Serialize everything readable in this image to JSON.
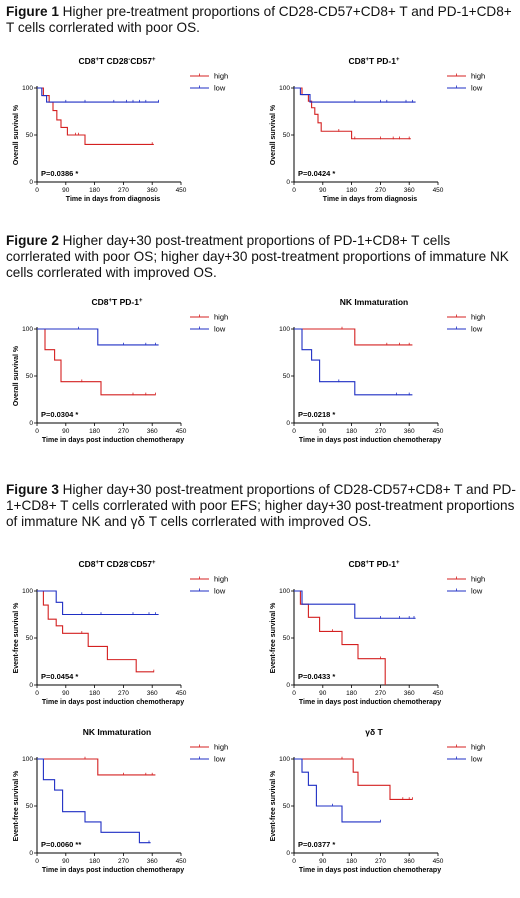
{
  "figures": [
    {
      "label": "Figure 1",
      "caption": "Higher pre-treatment proportions of CD28-CD57+CD8+ T and PD-1+CD8+ T cells corrlerated with poor OS."
    },
    {
      "label": "Figure 2",
      "caption": "Higher day+30 post-treatment proportions of PD-1+CD8+ T cells corrlerated with poor OS; higher day+30 post-treatment proportions of immature NK cells corrlerated with improved OS."
    },
    {
      "label": "Figure 3",
      "caption": "Higher day+30 post-treatment proportions of CD28-CD57+CD8+ T and PD-1+CD8+ T cells corrlerated with poor EFS; higher day+30 post-treatment proportions of immature NK and γδ T cells corrlerated with improved OS."
    }
  ],
  "colors": {
    "high": "#d42020",
    "low": "#1f2fc4",
    "axis": "#000000"
  },
  "chart_data": [
    {
      "type": "line",
      "figure": "Figure 1",
      "title": "CD8+T CD28-CD57+",
      "title_main": "CD8",
      "title_sup1": "+",
      "title_mid": "T CD28",
      "title_sub": "-",
      "title_mid2": "CD57",
      "title_sup2": "+",
      "ylabel": "Overall survival %",
      "xlabel": "Time in days from diagnosis",
      "xlim": [
        0,
        450
      ],
      "ylim": [
        0,
        100
      ],
      "xticks": [
        "0",
        "90",
        "180",
        "270",
        "360",
        "450"
      ],
      "yticks": [
        "0",
        "50",
        "100"
      ],
      "pvalue": "P=0.0386 *",
      "series": [
        {
          "name": "high",
          "steps": [
            [
              0,
              100
            ],
            [
              20,
              92
            ],
            [
              38,
              85
            ],
            [
              50,
              76
            ],
            [
              62,
              66
            ],
            [
              75,
              58
            ],
            [
              95,
              50
            ],
            [
              140,
              50
            ],
            [
              150,
              40
            ],
            [
              365,
              40
            ]
          ],
          "censor": [
            [
              120,
              50
            ],
            [
              130,
              50
            ],
            [
              360,
              40
            ]
          ]
        },
        {
          "name": "low",
          "steps": [
            [
              0,
              100
            ],
            [
              15,
              92
            ],
            [
              30,
              85
            ],
            [
              380,
              85
            ]
          ],
          "censor": [
            [
              90,
              85
            ],
            [
              150,
              85
            ],
            [
              240,
              85
            ],
            [
              280,
              85
            ],
            [
              300,
              85
            ],
            [
              320,
              85
            ],
            [
              340,
              85
            ],
            [
              380,
              85
            ]
          ]
        }
      ]
    },
    {
      "type": "line",
      "figure": "Figure 1",
      "title": "CD8+T PD-1+",
      "title_main": "CD8",
      "title_sup1": "+",
      "title_mid": "T PD-1",
      "title_sub": "",
      "title_mid2": "",
      "title_sup2": "+",
      "ylabel": "Overall survival %",
      "xlabel": "Time in days from diagnosis",
      "xlim": [
        0,
        450
      ],
      "ylim": [
        0,
        100
      ],
      "xticks": [
        "0",
        "90",
        "180",
        "270",
        "360",
        "450"
      ],
      "yticks": [
        "0",
        "50",
        "100"
      ],
      "pvalue": "P=0.0424 *",
      "series": [
        {
          "name": "high",
          "steps": [
            [
              0,
              100
            ],
            [
              25,
              93
            ],
            [
              45,
              86
            ],
            [
              55,
              79
            ],
            [
              65,
              72
            ],
            [
              75,
              63
            ],
            [
              85,
              54
            ],
            [
              170,
              54
            ],
            [
              180,
              46
            ],
            [
              365,
              46
            ]
          ],
          "censor": [
            [
              140,
              54
            ],
            [
              190,
              46
            ],
            [
              270,
              46
            ],
            [
              310,
              46
            ],
            [
              330,
              46
            ],
            [
              360,
              46
            ]
          ]
        },
        {
          "name": "low",
          "steps": [
            [
              0,
              100
            ],
            [
              20,
              93
            ],
            [
              50,
              85
            ],
            [
              380,
              85
            ]
          ],
          "censor": [
            [
              190,
              85
            ],
            [
              270,
              85
            ],
            [
              290,
              85
            ],
            [
              350,
              85
            ],
            [
              370,
              85
            ]
          ]
        }
      ]
    },
    {
      "type": "line",
      "figure": "Figure 2",
      "title": "CD8+T PD-1+",
      "title_main": "CD8",
      "title_sup1": "+",
      "title_mid": "T PD-1",
      "title_sub": "",
      "title_mid2": "",
      "title_sup2": "+",
      "ylabel": "Overall survival %",
      "xlabel": "Time in days post induction chemotherapy",
      "xlim": [
        0,
        450
      ],
      "ylim": [
        0,
        100
      ],
      "xticks": [
        "0",
        "90",
        "180",
        "270",
        "360",
        "450"
      ],
      "yticks": [
        "0",
        "50",
        "100"
      ],
      "pvalue": "P=0.0304 *",
      "series": [
        {
          "name": "high",
          "steps": [
            [
              0,
              100
            ],
            [
              25,
              78
            ],
            [
              55,
              67
            ],
            [
              75,
              44
            ],
            [
              180,
              44
            ],
            [
              200,
              30
            ],
            [
              370,
              30
            ]
          ],
          "censor": [
            [
              140,
              44
            ],
            [
              300,
              30
            ],
            [
              340,
              30
            ],
            [
              370,
              30
            ]
          ]
        },
        {
          "name": "low",
          "steps": [
            [
              0,
              100
            ],
            [
              180,
              100
            ],
            [
              190,
              83
            ],
            [
              380,
              83
            ]
          ],
          "censor": [
            [
              130,
              100
            ],
            [
              270,
              83
            ],
            [
              340,
              83
            ],
            [
              370,
              83
            ]
          ]
        }
      ]
    },
    {
      "type": "line",
      "figure": "Figure 2",
      "title": "NK Immaturation",
      "title_main": "NK Immaturation",
      "title_sup1": "",
      "title_mid": "",
      "title_sub": "",
      "title_mid2": "",
      "title_sup2": "",
      "ylabel": "",
      "xlabel": "Time in days post induction chemotherapy",
      "xlim": [
        0,
        450
      ],
      "ylim": [
        0,
        100
      ],
      "xticks": [
        "0",
        "90",
        "180",
        "270",
        "360",
        "450"
      ],
      "yticks": [
        "0",
        "50",
        "100"
      ],
      "pvalue": "P=0.0218 *",
      "series": [
        {
          "name": "high",
          "steps": [
            [
              0,
              100
            ],
            [
              180,
              100
            ],
            [
              190,
              83
            ],
            [
              370,
              83
            ]
          ],
          "censor": [
            [
              150,
              100
            ],
            [
              290,
              83
            ],
            [
              330,
              83
            ],
            [
              360,
              83
            ]
          ]
        },
        {
          "name": "low",
          "steps": [
            [
              0,
              100
            ],
            [
              25,
              78
            ],
            [
              55,
              67
            ],
            [
              80,
              44
            ],
            [
              180,
              44
            ],
            [
              190,
              30
            ],
            [
              370,
              30
            ]
          ],
          "censor": [
            [
              140,
              44
            ],
            [
              320,
              30
            ],
            [
              360,
              30
            ]
          ]
        }
      ]
    },
    {
      "type": "line",
      "figure": "Figure 3",
      "title": "CD8+T CD28-CD57+",
      "title_main": "CD8",
      "title_sup1": "+",
      "title_mid": "T CD28",
      "title_sub": "-",
      "title_mid2": "CD57",
      "title_sup2": "+",
      "ylabel": "Event-free survival %",
      "xlabel": "Time in days post induction chemotherapy",
      "xlim": [
        0,
        450
      ],
      "ylim": [
        0,
        100
      ],
      "xticks": [
        "0",
        "90",
        "180",
        "270",
        "360",
        "450"
      ],
      "yticks": [
        "0",
        "50",
        "100"
      ],
      "pvalue": "P=0.0454 *",
      "series": [
        {
          "name": "high",
          "steps": [
            [
              0,
              100
            ],
            [
              20,
              85
            ],
            [
              35,
              70
            ],
            [
              60,
              63
            ],
            [
              80,
              55
            ],
            [
              150,
              55
            ],
            [
              160,
              41
            ],
            [
              210,
              41
            ],
            [
              220,
              27
            ],
            [
              300,
              27
            ],
            [
              310,
              14
            ],
            [
              365,
              14
            ]
          ],
          "censor": [
            [
              140,
              55
            ],
            [
              365,
              14
            ]
          ]
        },
        {
          "name": "low",
          "steps": [
            [
              0,
              100
            ],
            [
              60,
              88
            ],
            [
              80,
              75
            ],
            [
              380,
              75
            ]
          ],
          "censor": [
            [
              140,
              75
            ],
            [
              200,
              75
            ],
            [
              300,
              75
            ],
            [
              350,
              75
            ],
            [
              370,
              75
            ]
          ]
        }
      ]
    },
    {
      "type": "line",
      "figure": "Figure 3",
      "title": "CD8+T PD-1+",
      "title_main": "CD8",
      "title_sup1": "+",
      "title_mid": "T PD-1",
      "title_sub": "",
      "title_mid2": "",
      "title_sup2": "+",
      "ylabel": "Event-free survival %",
      "xlabel": "Time in days post induction chemotherapy",
      "xlim": [
        0,
        450
      ],
      "ylim": [
        0,
        100
      ],
      "xticks": [
        "0",
        "90",
        "180",
        "270",
        "360",
        "450"
      ],
      "yticks": [
        "0",
        "50",
        "100"
      ],
      "pvalue": "P=0.0433 *",
      "series": [
        {
          "name": "high",
          "steps": [
            [
              0,
              100
            ],
            [
              20,
              86
            ],
            [
              45,
              72
            ],
            [
              80,
              57
            ],
            [
              130,
              57
            ],
            [
              150,
              43
            ],
            [
              190,
              43
            ],
            [
              200,
              28
            ],
            [
              280,
              28
            ],
            [
              285,
              0
            ]
          ],
          "censor": [
            [
              120,
              57
            ],
            [
              270,
              28
            ]
          ]
        },
        {
          "name": "low",
          "steps": [
            [
              0,
              100
            ],
            [
              25,
              86
            ],
            [
              180,
              86
            ],
            [
              190,
              71
            ],
            [
              380,
              71
            ]
          ],
          "censor": [
            [
              270,
              71
            ],
            [
              330,
              71
            ],
            [
              360,
              71
            ],
            [
              375,
              71
            ]
          ]
        }
      ]
    },
    {
      "type": "line",
      "figure": "Figure 3",
      "title": "NK Immaturation",
      "title_main": "NK Immaturation",
      "title_sup1": "",
      "title_mid": "",
      "title_sub": "",
      "title_mid2": "",
      "title_sup2": "",
      "ylabel": "Event-free survival %",
      "xlabel": "Time in days post induction chemotherapy",
      "xlim": [
        0,
        450
      ],
      "ylim": [
        0,
        100
      ],
      "xticks": [
        "0",
        "90",
        "180",
        "270",
        "360",
        "450"
      ],
      "yticks": [
        "0",
        "50",
        "100"
      ],
      "pvalue": "P=0.0060 **",
      "series": [
        {
          "name": "high",
          "steps": [
            [
              0,
              100
            ],
            [
              180,
              100
            ],
            [
              190,
              83
            ],
            [
              370,
              83
            ]
          ],
          "censor": [
            [
              150,
              100
            ],
            [
              270,
              83
            ],
            [
              340,
              83
            ],
            [
              360,
              83
            ]
          ]
        },
        {
          "name": "low",
          "steps": [
            [
              0,
              100
            ],
            [
              20,
              78
            ],
            [
              55,
              67
            ],
            [
              80,
              44
            ],
            [
              140,
              44
            ],
            [
              150,
              33
            ],
            [
              190,
              33
            ],
            [
              200,
              22
            ],
            [
              310,
              22
            ],
            [
              320,
              11
            ],
            [
              355,
              11
            ]
          ],
          "censor": [
            [
              350,
              11
            ]
          ]
        }
      ]
    },
    {
      "type": "line",
      "figure": "Figure 3",
      "title": "γδ T",
      "title_main": "γδ T",
      "title_sup1": "",
      "title_mid": "",
      "title_sub": "",
      "title_mid2": "",
      "title_sup2": "",
      "ylabel": "Event-free survival %",
      "xlabel": "Time in days post induction chemotherapy",
      "xlim": [
        0,
        450
      ],
      "ylim": [
        0,
        100
      ],
      "xticks": [
        "0",
        "90",
        "180",
        "270",
        "360",
        "450"
      ],
      "yticks": [
        "0",
        "50",
        "100"
      ],
      "pvalue": "P=0.0377 *",
      "series": [
        {
          "name": "high",
          "steps": [
            [
              0,
              100
            ],
            [
              175,
              100
            ],
            [
              185,
              86
            ],
            [
              200,
              72
            ],
            [
              290,
              72
            ],
            [
              300,
              57
            ],
            [
              370,
              57
            ]
          ],
          "censor": [
            [
              150,
              100
            ],
            [
              340,
              57
            ],
            [
              360,
              57
            ],
            [
              370,
              57
            ]
          ]
        },
        {
          "name": "low",
          "steps": [
            [
              0,
              100
            ],
            [
              25,
              86
            ],
            [
              45,
              72
            ],
            [
              70,
              50
            ],
            [
              140,
              50
            ],
            [
              150,
              33
            ],
            [
              270,
              33
            ]
          ],
          "censor": [
            [
              120,
              50
            ],
            [
              270,
              33
            ]
          ]
        }
      ]
    }
  ]
}
